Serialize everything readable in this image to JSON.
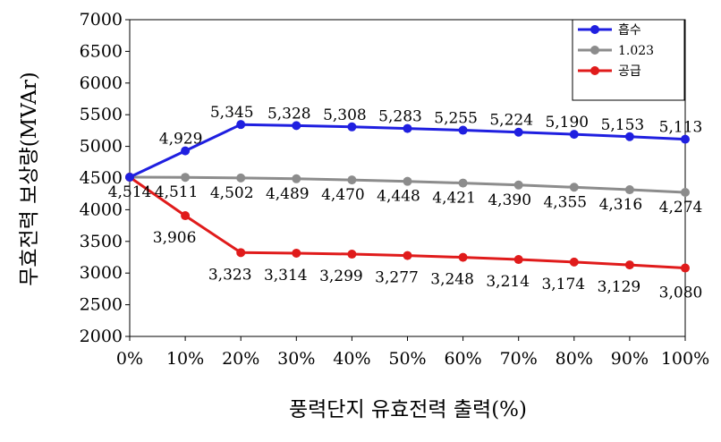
{
  "chart_data": {
    "type": "line",
    "title": "",
    "xlabel": "풍력단지 유효전력 출력(%)",
    "ylabel": "무효전력 보상량(MVAr)",
    "categories": [
      "0%",
      "10%",
      "20%",
      "30%",
      "40%",
      "50%",
      "60%",
      "70%",
      "80%",
      "90%",
      "100%"
    ],
    "ylim": [
      2000,
      7000
    ],
    "yticks": [
      "2000",
      "2500",
      "3000",
      "3500",
      "4000",
      "4500",
      "5000",
      "5500",
      "6000",
      "6500",
      "7000"
    ],
    "grid": false,
    "legend_position": "top-right",
    "series": [
      {
        "name": "흡수",
        "color": "#1f1fe0",
        "values": [
          4514,
          4929,
          5345,
          5328,
          5308,
          5283,
          5255,
          5224,
          5190,
          5153,
          5113
        ],
        "labels": [
          "",
          "4,929",
          "5,345",
          "5,328",
          "5,308",
          "5,283",
          "5,255",
          "5,224",
          "5,190",
          "5,153",
          "5,113"
        ]
      },
      {
        "name": "1.023",
        "color": "#8c8c8c",
        "values": [
          4514,
          4511,
          4502,
          4489,
          4470,
          4448,
          4421,
          4390,
          4355,
          4316,
          4274
        ],
        "labels": [
          "4,514",
          "4,511",
          "4,502",
          "4,489",
          "4,470",
          "4,448",
          "4,421",
          "4,390",
          "4,355",
          "4,316",
          "4,274"
        ]
      },
      {
        "name": "공급",
        "color": "#e01b1b",
        "values": [
          4514,
          3906,
          3323,
          3314,
          3299,
          3277,
          3248,
          3214,
          3174,
          3129,
          3080
        ],
        "labels": [
          "",
          "3,906",
          "3,323",
          "3,314",
          "3,299",
          "3,277",
          "3,248",
          "3,214",
          "3,174",
          "3,129",
          "3,080"
        ]
      }
    ]
  }
}
